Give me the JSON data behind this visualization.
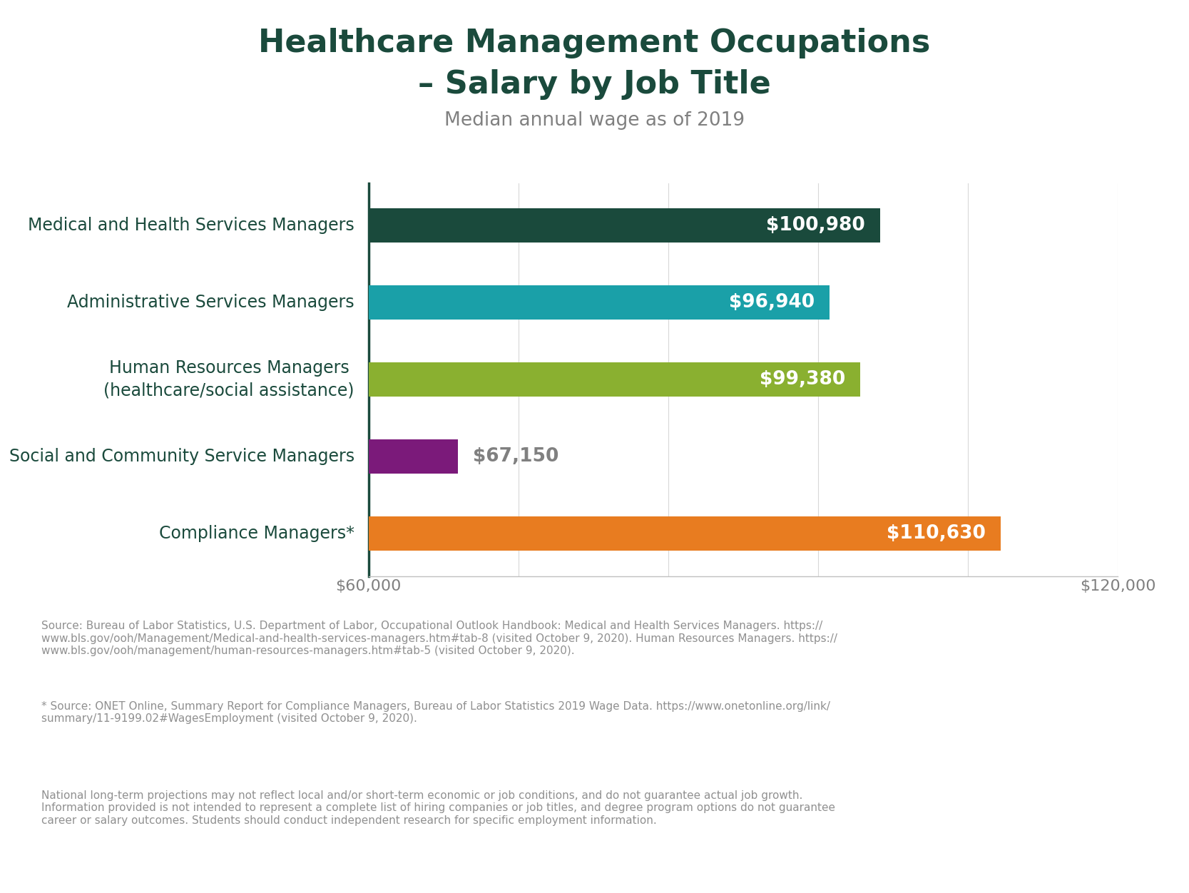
{
  "title_line1": "Healthcare Management Occupations",
  "title_line2": "– Salary by Job Title",
  "subtitle": "Median annual wage as of 2019",
  "categories": [
    "Medical and Health Services Managers",
    "Administrative Services Managers",
    "Human Resources Managers\n(healthcare/social assistance)",
    "Social and Community Service Managers",
    "Compliance Managers*"
  ],
  "values": [
    100980,
    96940,
    99380,
    67150,
    110630
  ],
  "bar_colors": [
    "#1a4a3c",
    "#1aa0a8",
    "#8ab030",
    "#7b1a7a",
    "#e87c20"
  ],
  "label_colors": [
    "#ffffff",
    "#ffffff",
    "#ffffff",
    "#808080",
    "#ffffff"
  ],
  "xmin": 60000,
  "xmax": 120000,
  "xticks": [
    60000,
    72000,
    84000,
    96000,
    108000,
    120000
  ],
  "background_color": "#ffffff",
  "title_color": "#1a4a3c",
  "subtitle_color": "#808080",
  "label_color": "#1a4a3c",
  "source_text": "Source: Bureau of Labor Statistics, U.S. Department of Labor, Occupational Outlook Handbook: Medical and Health Services Managers. https://\nwww.bls.gov/ooh/Management/Medical-and-health-services-managers.htm#tab-8 (visited October 9, 2020). Human Resources Managers. https://\nwww.bls.gov/ooh/management/human-resources-managers.htm#tab-5 (visited October 9, 2020).",
  "source_text2": "* Source: ONET Online, Summary Report for Compliance Managers, Bureau of Labor Statistics 2019 Wage Data. https://www.onetonline.org/link/\nsummary/11-9199.02#WagesEmployment (visited October 9, 2020).",
  "source_text3": "National long-term projections may not reflect local and/or short-term economic or job conditions, and do not guarantee actual job growth.\nInformation provided is not intended to represent a complete list of hiring companies or job titles, and degree program options do not guarantee\ncareer or salary outcomes. Students should conduct independent research for specific employment information.",
  "bar_height": 0.45,
  "figsize": [
    16.67,
    12.52
  ],
  "dpi": 100
}
